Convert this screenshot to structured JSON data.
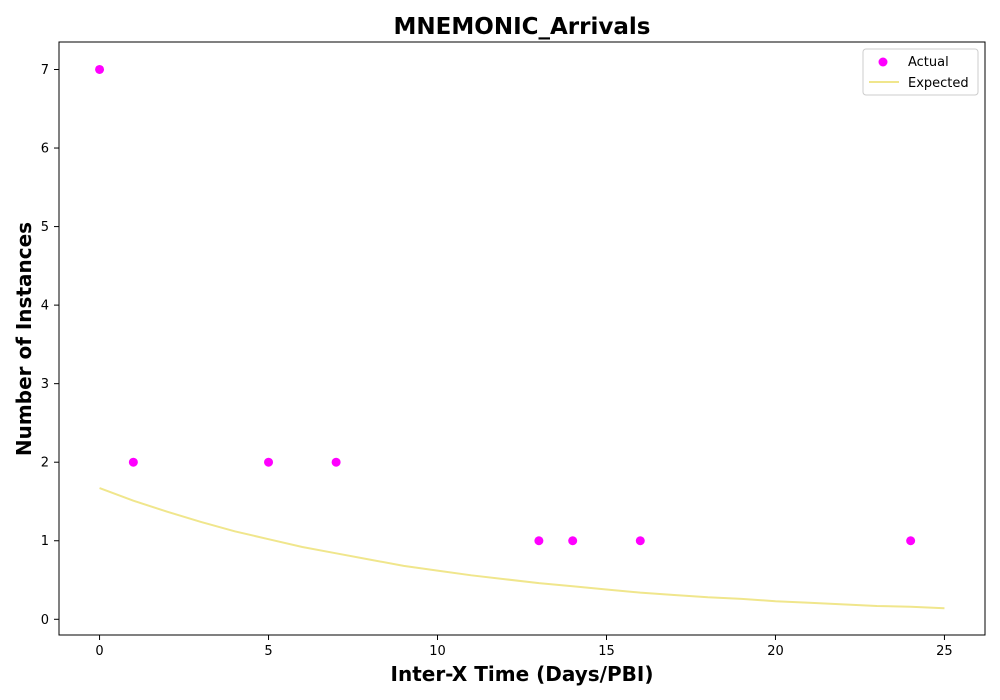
{
  "chart_data": {
    "type": "scatter",
    "title": "MNEMONIC_Arrivals",
    "xlabel": "Inter-X Time (Days/PBI)",
    "ylabel": "Number of Instances",
    "xlim": [
      -1.2,
      26.2
    ],
    "ylim": [
      -0.2,
      7.35
    ],
    "x_ticks": [
      0,
      5,
      10,
      15,
      20,
      25
    ],
    "y_ticks": [
      0,
      1,
      2,
      3,
      4,
      5,
      6,
      7
    ],
    "grid": false,
    "legend_position": "top-right",
    "series": [
      {
        "name": "Actual",
        "kind": "scatter",
        "color": "#ff00ff",
        "points": [
          {
            "x": 0,
            "y": 7
          },
          {
            "x": 1,
            "y": 2
          },
          {
            "x": 5,
            "y": 2
          },
          {
            "x": 7,
            "y": 2
          },
          {
            "x": 13,
            "y": 1
          },
          {
            "x": 14,
            "y": 1
          },
          {
            "x": 16,
            "y": 1
          },
          {
            "x": 24,
            "y": 1
          }
        ]
      },
      {
        "name": "Expected",
        "kind": "line",
        "color": "#f0e68c",
        "points": [
          {
            "x": 0,
            "y": 1.67
          },
          {
            "x": 1,
            "y": 1.51
          },
          {
            "x": 2,
            "y": 1.37
          },
          {
            "x": 3,
            "y": 1.24
          },
          {
            "x": 4,
            "y": 1.12
          },
          {
            "x": 5,
            "y": 1.02
          },
          {
            "x": 6,
            "y": 0.92
          },
          {
            "x": 7,
            "y": 0.84
          },
          {
            "x": 8,
            "y": 0.76
          },
          {
            "x": 9,
            "y": 0.68
          },
          {
            "x": 10,
            "y": 0.62
          },
          {
            "x": 11,
            "y": 0.56
          },
          {
            "x": 12,
            "y": 0.51
          },
          {
            "x": 13,
            "y": 0.46
          },
          {
            "x": 14,
            "y": 0.42
          },
          {
            "x": 15,
            "y": 0.38
          },
          {
            "x": 16,
            "y": 0.34
          },
          {
            "x": 17,
            "y": 0.31
          },
          {
            "x": 18,
            "y": 0.28
          },
          {
            "x": 19,
            "y": 0.26
          },
          {
            "x": 20,
            "y": 0.23
          },
          {
            "x": 21,
            "y": 0.21
          },
          {
            "x": 22,
            "y": 0.19
          },
          {
            "x": 23,
            "y": 0.17
          },
          {
            "x": 24,
            "y": 0.16
          },
          {
            "x": 25,
            "y": 0.14
          }
        ]
      }
    ]
  }
}
